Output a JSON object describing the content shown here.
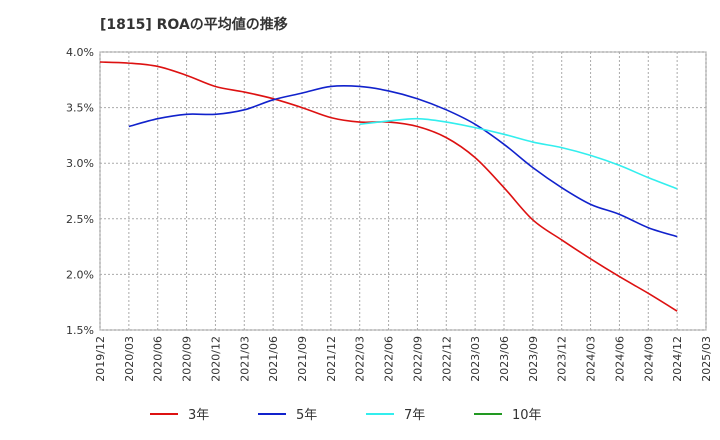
{
  "chart_data": {
    "type": "line",
    "title": "[1815]  ROAの平均値の推移",
    "xlabel": "",
    "ylabel": "",
    "ylim": [
      1.5,
      4.0
    ],
    "grid": true,
    "legend_position": "bottom",
    "y_ticks": [
      "1.5%",
      "2.0%",
      "2.5%",
      "3.0%",
      "3.5%",
      "4.0%"
    ],
    "y_tick_values": [
      1.5,
      2.0,
      2.5,
      3.0,
      3.5,
      4.0
    ],
    "x": [
      "2019/12",
      "2020/03",
      "2020/06",
      "2020/09",
      "2020/12",
      "2021/03",
      "2021/06",
      "2021/09",
      "2021/12",
      "2022/03",
      "2022/06",
      "2022/09",
      "2022/12",
      "2023/03",
      "2023/06",
      "2023/09",
      "2023/12",
      "2024/03",
      "2024/06",
      "2024/09",
      "2024/12",
      "2025/03"
    ],
    "series": [
      {
        "name": "3年",
        "color": "#dd1111",
        "values": [
          3.91,
          3.9,
          3.87,
          3.79,
          3.69,
          3.64,
          3.58,
          3.5,
          3.41,
          3.37,
          3.37,
          3.33,
          3.23,
          3.05,
          2.78,
          2.49,
          2.31,
          2.14,
          1.98,
          1.83,
          1.67,
          null
        ]
      },
      {
        "name": "5年",
        "color": "#1122cc",
        "values": [
          null,
          3.33,
          3.4,
          3.44,
          3.44,
          3.48,
          3.57,
          3.63,
          3.69,
          3.69,
          3.65,
          3.58,
          3.48,
          3.35,
          3.17,
          2.96,
          2.78,
          2.63,
          2.54,
          2.42,
          2.34,
          null
        ]
      },
      {
        "name": "7年",
        "color": "#33eeee",
        "values": [
          null,
          null,
          null,
          null,
          null,
          null,
          null,
          null,
          null,
          3.35,
          3.38,
          3.4,
          3.37,
          3.32,
          3.26,
          3.19,
          3.14,
          3.07,
          2.98,
          2.87,
          2.77,
          null
        ]
      },
      {
        "name": "10年",
        "color": "#229922",
        "values": [
          null,
          null,
          null,
          null,
          null,
          null,
          null,
          null,
          null,
          null,
          null,
          null,
          null,
          null,
          null,
          null,
          null,
          null,
          null,
          null,
          null,
          null
        ]
      }
    ]
  }
}
